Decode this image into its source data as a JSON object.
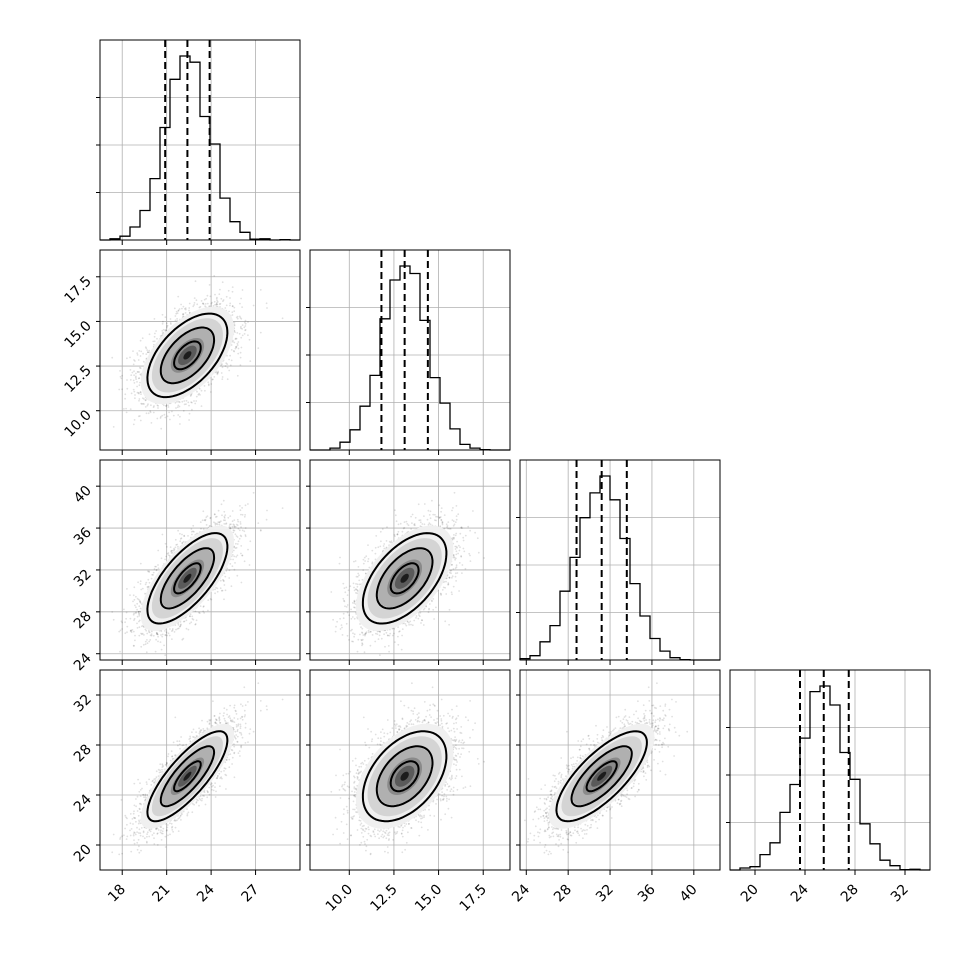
{
  "chart_data": {
    "type": "corner",
    "parameters": [
      {
        "mean": 22.4,
        "sd": 1.5,
        "quantiles": [
          20.9,
          22.4,
          23.9
        ],
        "range": [
          16.5,
          30.0
        ],
        "ticks": [
          18,
          21,
          24,
          27
        ],
        "tick_labels": [
          "18",
          "21",
          "24",
          "27"
        ]
      },
      {
        "mean": 13.1,
        "sd": 1.3,
        "quantiles": [
          11.8,
          13.1,
          14.4
        ],
        "range": [
          7.8,
          19.0
        ],
        "ticks": [
          10.0,
          12.5,
          15.0,
          17.5
        ],
        "tick_labels": [
          "10.0",
          "12.5",
          "15.0",
          "17.5"
        ]
      },
      {
        "mean": 31.2,
        "sd": 2.4,
        "quantiles": [
          28.8,
          31.2,
          33.6
        ],
        "range": [
          23.4,
          42.5
        ],
        "ticks": [
          24,
          28,
          32,
          36,
          40
        ],
        "tick_labels": [
          "24",
          "28",
          "32",
          "36",
          "40"
        ]
      },
      {
        "mean": 25.5,
        "sd": 2.0,
        "quantiles": [
          23.6,
          25.5,
          27.5
        ],
        "range": [
          18.0,
          34.0
        ],
        "ticks": [
          20,
          24,
          28,
          32
        ],
        "tick_labels": [
          "20",
          "24",
          "28",
          "32"
        ]
      }
    ],
    "correlations": [
      [
        1.0,
        0.55,
        0.7,
        0.8
      ],
      [
        0.55,
        1.0,
        0.55,
        0.45
      ],
      [
        0.7,
        0.55,
        1.0,
        0.75
      ],
      [
        0.8,
        0.45,
        0.75,
        1.0
      ]
    ],
    "histogram_bins": 20,
    "contour_levels": [
      0.5,
      1.0,
      1.5
    ],
    "quantile_lines": "dashed",
    "grid": true,
    "colors": {
      "points": "#000000",
      "density": "#000000",
      "lines": "#000000"
    }
  }
}
